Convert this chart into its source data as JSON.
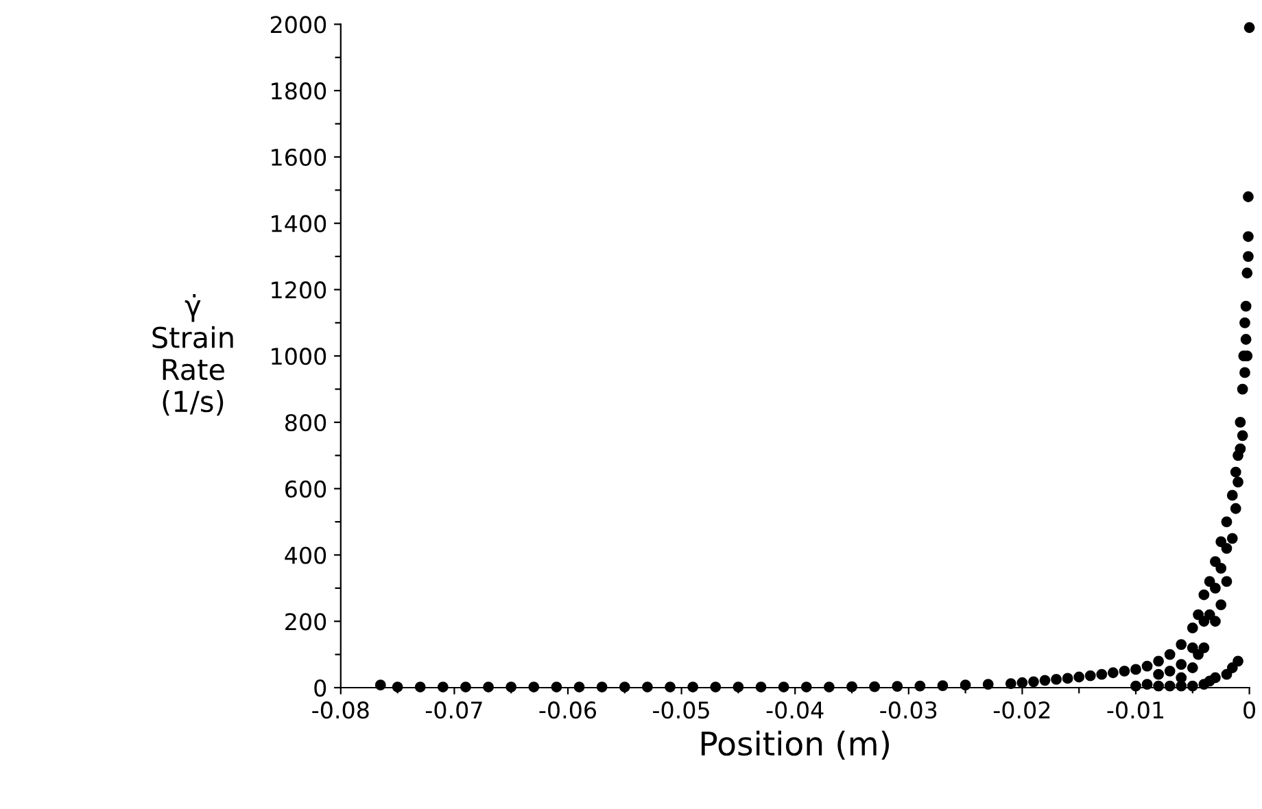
{
  "chart_data": {
    "type": "scatter",
    "xlabel": "Position (m)",
    "ylabel": "γ̇\nStrain\nRate\n(1/s)",
    "marker": "circle",
    "grid": false,
    "xlim": [
      -0.08,
      0
    ],
    "ylim": [
      0,
      2000
    ],
    "xticks": [
      -0.08,
      {
        "value": -0.075,
        "label": null
      },
      -0.07,
      {
        "value": -0.065,
        "label": null
      },
      -0.06,
      {
        "value": -0.055,
        "label": null
      },
      -0.05,
      {
        "value": -0.045,
        "label": null
      },
      -0.04,
      {
        "value": -0.035,
        "label": null
      },
      -0.03,
      {
        "value": -0.025,
        "label": null
      },
      -0.02,
      {
        "value": -0.015,
        "label": null
      },
      -0.01,
      {
        "value": -0.005,
        "label": null
      },
      0
    ],
    "yticks": [
      0,
      {
        "value": 100,
        "label": null
      },
      200,
      {
        "value": 300,
        "label": null
      },
      400,
      {
        "value": 500,
        "label": null
      },
      600,
      {
        "value": 700,
        "label": null
      },
      800,
      {
        "value": 900,
        "label": null
      },
      1000,
      {
        "value": 1100,
        "label": null
      },
      1200,
      {
        "value": 1300,
        "label": null
      },
      1400,
      {
        "value": 1500,
        "label": null
      },
      1600,
      {
        "value": 1700,
        "label": null
      },
      1800,
      {
        "value": 1900,
        "label": null
      },
      2000
    ],
    "series": [
      {
        "color": "#000000",
        "x": [
          -0.0765,
          -0.075,
          -0.073,
          -0.071,
          -0.069,
          -0.067,
          -0.065,
          -0.063,
          -0.061,
          -0.059,
          -0.057,
          -0.055,
          -0.053,
          -0.051,
          -0.049,
          -0.047,
          -0.045,
          -0.043,
          -0.041,
          -0.039,
          -0.037,
          -0.035,
          -0.033,
          -0.031,
          -0.029,
          -0.027,
          -0.025,
          -0.023,
          -0.021,
          -0.02,
          -0.019,
          -0.018,
          -0.017,
          -0.016,
          -0.015,
          -0.014,
          -0.013,
          -0.012,
          -0.011,
          -0.01,
          -0.01,
          -0.009,
          -0.009,
          -0.008,
          -0.008,
          -0.008,
          -0.007,
          -0.007,
          -0.007,
          -0.006,
          -0.006,
          -0.006,
          -0.006,
          -0.005,
          -0.005,
          -0.005,
          -0.005,
          -0.0045,
          -0.0045,
          -0.004,
          -0.004,
          -0.004,
          -0.004,
          -0.0035,
          -0.0035,
          -0.0035,
          -0.003,
          -0.003,
          -0.003,
          -0.003,
          -0.0025,
          -0.0025,
          -0.0025,
          -0.002,
          -0.002,
          -0.002,
          -0.002,
          -0.0015,
          -0.0015,
          -0.0015,
          -0.0012,
          -0.0012,
          -0.001,
          -0.001,
          -0.001,
          -0.0008,
          -0.0008,
          -0.0006,
          -0.0006,
          -0.0005,
          -0.0004,
          -0.0004,
          -0.0003,
          -0.0003,
          -0.0002,
          -0.0002,
          -0.0001,
          -0.0001,
          -0.0001,
          0
        ],
        "values": [
          8,
          2,
          2,
          2,
          2,
          2,
          2,
          2,
          2,
          2,
          2,
          2,
          2,
          2,
          2,
          2,
          2,
          2,
          2,
          2,
          2,
          3,
          3,
          4,
          5,
          6,
          8,
          10,
          12,
          15,
          18,
          22,
          25,
          28,
          32,
          36,
          40,
          45,
          50,
          55,
          5,
          65,
          10,
          80,
          40,
          5,
          100,
          50,
          5,
          130,
          70,
          30,
          5,
          180,
          120,
          60,
          5,
          220,
          100,
          280,
          200,
          120,
          10,
          320,
          220,
          20,
          380,
          300,
          200,
          30,
          440,
          360,
          250,
          500,
          420,
          320,
          40,
          580,
          450,
          60,
          650,
          540,
          700,
          620,
          80,
          800,
          720,
          900,
          760,
          1000,
          1100,
          950,
          1150,
          1050,
          1250,
          1000,
          1360,
          1300,
          1480,
          1990
        ]
      }
    ]
  }
}
